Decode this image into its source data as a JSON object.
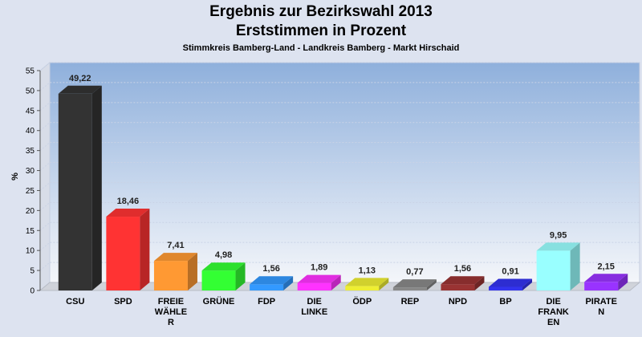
{
  "chart_data": {
    "type": "bar",
    "title": "Ergebnis zur Bezirkswahl 2013",
    "subtitle": "Erststimmen in Prozent",
    "caption": "Stimmkreis Bamberg-Land - Landkreis Bamberg - Markt Hirschaid",
    "ylabel": "%",
    "ylim": [
      0,
      55
    ],
    "yticks": [
      "0",
      "5",
      "10",
      "15",
      "20",
      "25",
      "30",
      "35",
      "40",
      "45",
      "50",
      "55"
    ],
    "grid": true,
    "categories": [
      [
        "CSU"
      ],
      [
        "SPD"
      ],
      [
        "FREIE",
        "WÄHLE",
        "R"
      ],
      [
        "GRÜNE"
      ],
      [
        "FDP"
      ],
      [
        "DIE",
        "LINKE"
      ],
      [
        "ÖDP"
      ],
      [
        "REP"
      ],
      [
        "NPD"
      ],
      [
        "BP"
      ],
      [
        "DIE",
        "FRANK",
        "EN"
      ],
      [
        "PIRATE",
        "N"
      ]
    ],
    "values": [
      49.22,
      18.46,
      7.41,
      4.98,
      1.56,
      1.89,
      1.13,
      0.77,
      1.56,
      0.91,
      9.95,
      2.15
    ],
    "labels": [
      "49,22",
      "18,46",
      "7,41",
      "4,98",
      "1,56",
      "1,89",
      "1,13",
      "0,77",
      "1,56",
      "0,91",
      "9,95",
      "2,15"
    ],
    "colors": [
      "#333333",
      "#ff3333",
      "#ff9933",
      "#33ff33",
      "#3399ff",
      "#ff33ff",
      "#eeee33",
      "#888888",
      "#993333",
      "#3333ee",
      "#99ffff",
      "#9933ff"
    ]
  }
}
